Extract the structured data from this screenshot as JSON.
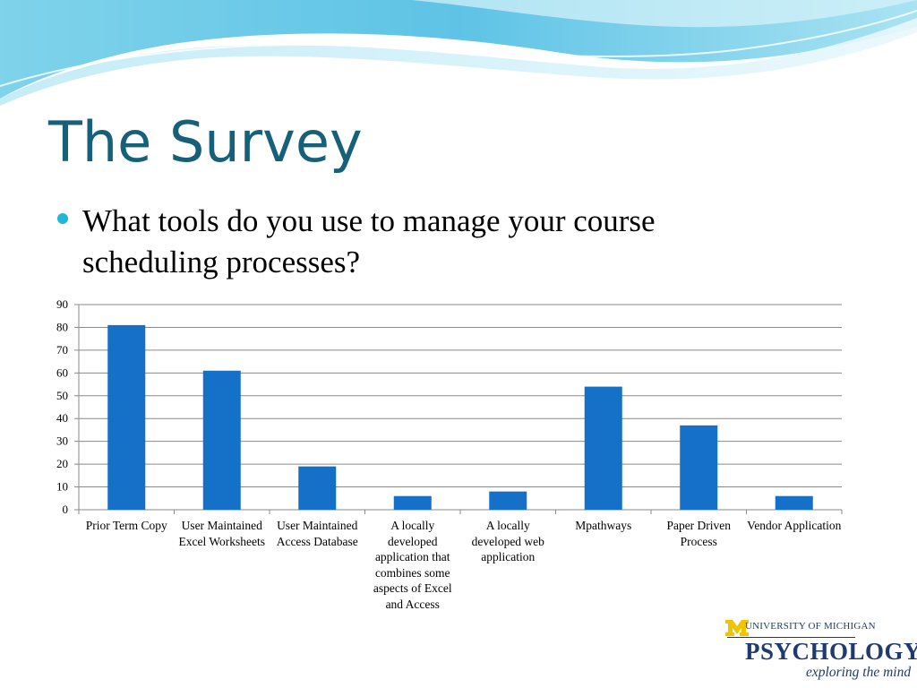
{
  "slide": {
    "title": "The Survey",
    "bullet": "What tools do you use to manage your course scheduling processes?"
  },
  "logo": {
    "university": "UNIVERSITY OF MICHIGAN",
    "department": "PSYCHOLOGY",
    "tagline": "exploring the mind"
  },
  "colors": {
    "title": "#17607a",
    "bar": "#1570c8",
    "bullet": "#1fb6d8",
    "logo": "#1f3a6e",
    "logo_m": "#f2c400"
  },
  "chart_data": {
    "type": "bar",
    "categories": [
      "Prior Term Copy",
      "User Maintained Excel Worksheets",
      "User Maintained Access Database",
      "A locally developed application that combines some aspects of Excel and Access",
      "A locally developed web application",
      "Mpathways",
      "Paper Driven Process",
      "Vendor Application"
    ],
    "values": [
      81,
      61,
      19,
      6,
      8,
      54,
      37,
      6
    ],
    "ylim": [
      0,
      90
    ],
    "yticks": [
      0,
      10,
      20,
      30,
      40,
      50,
      60,
      70,
      80,
      90
    ],
    "title": "",
    "xlabel": "",
    "ylabel": "",
    "grid": true,
    "legend": "none"
  }
}
